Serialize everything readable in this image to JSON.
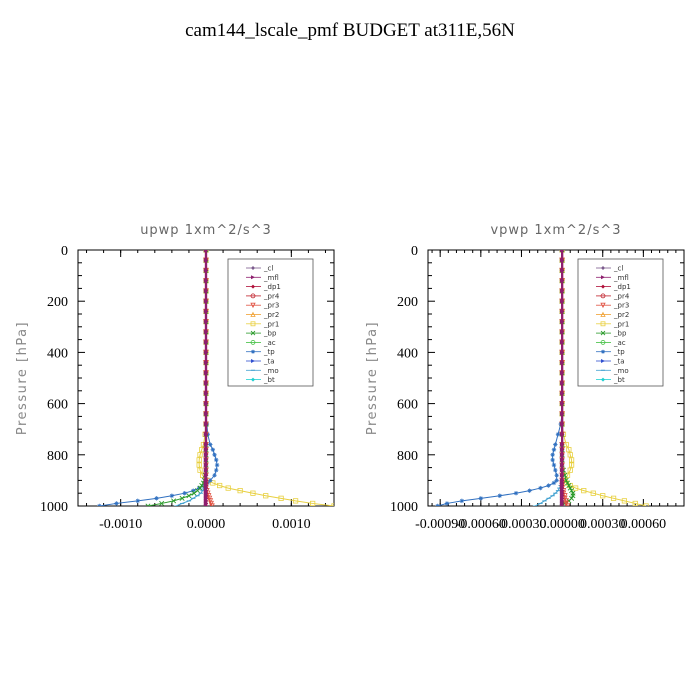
{
  "title": "cam144_lscale_pmf  BUDGET at311E,56N",
  "legend_entries": [
    {
      "name": "_cl",
      "color": "#7b5a8c",
      "marker": "diamond"
    },
    {
      "name": "_mfl",
      "color": "#8e1f6e",
      "marker": "triangle-right"
    },
    {
      "name": "_dp1",
      "color": "#b0103a",
      "marker": "diamond"
    },
    {
      "name": "_pr4",
      "color": "#c0202a",
      "marker": "circle"
    },
    {
      "name": "_pr3",
      "color": "#e05040",
      "marker": "triangle-down"
    },
    {
      "name": "_pr2",
      "color": "#f0a030",
      "marker": "triangle-up"
    },
    {
      "name": "_pr1",
      "color": "#e8d040",
      "marker": "square"
    },
    {
      "name": "_bp",
      "color": "#2a9a2a",
      "marker": "x"
    },
    {
      "name": "_ac",
      "color": "#40c040",
      "marker": "circle"
    },
    {
      "name": "_tp",
      "color": "#3070c0",
      "marker": "star"
    },
    {
      "name": "_ta",
      "color": "#3050d0",
      "marker": "triangle-right"
    },
    {
      "name": "_mo",
      "color": "#40a0d0",
      "marker": "dash"
    },
    {
      "name": "_bt",
      "color": "#20d0d0",
      "marker": "diamond"
    }
  ],
  "chart_data": [
    {
      "type": "line",
      "title": "upwp   1xm^2/s^3",
      "ylabel": "Pressure  [hPa]",
      "xlim": [
        -0.0015,
        0.0015
      ],
      "ylim": [
        1000,
        0
      ],
      "xticks": [
        -0.001,
        0.0,
        0.001
      ],
      "xtick_labels": [
        "-0.0010",
        "0.0000",
        "0.0010"
      ],
      "yticks": [
        0,
        200,
        400,
        600,
        800,
        1000
      ],
      "ytick_labels": [
        "0",
        "200",
        "400",
        "600",
        "800",
        "1000"
      ],
      "legend_placement": "top-right",
      "y": [
        0,
        40,
        80,
        120,
        160,
        200,
        240,
        280,
        320,
        360,
        400,
        440,
        480,
        520,
        560,
        600,
        640,
        680,
        720,
        760,
        780,
        800,
        820,
        840,
        860,
        880,
        900,
        910,
        920,
        930,
        940,
        950,
        960,
        970,
        980,
        990,
        1000
      ],
      "series": [
        {
          "name": "_pr1",
          "x": [
            0,
            0,
            0,
            0,
            0,
            0,
            0,
            0,
            0,
            0,
            0,
            0,
            0,
            0,
            0,
            0,
            0,
            0,
            -1e-05,
            -3e-05,
            -5e-05,
            -7e-05,
            -8e-05,
            -8e-05,
            -7e-05,
            -4e-05,
            2e-05,
            8e-05,
            0.00016,
            0.00026,
            0.0004,
            0.00055,
            0.0007,
            0.00088,
            0.00105,
            0.00125,
            0.0015
          ]
        },
        {
          "name": "_tp",
          "x": [
            0,
            0,
            0,
            0,
            0,
            0,
            0,
            0,
            0,
            0,
            0,
            0,
            0,
            0,
            0,
            0,
            0,
            1e-05,
            2e-05,
            5e-05,
            8e-05,
            0.0001,
            0.00012,
            0.00013,
            0.00012,
            0.0001,
            5e-05,
            2e-05,
            -2e-05,
            -8e-05,
            -0.00015,
            -0.00025,
            -0.0004,
            -0.00058,
            -0.0008,
            -0.00105,
            -0.00125
          ]
        },
        {
          "name": "_bp",
          "x": [
            0,
            0,
            0,
            0,
            0,
            0,
            0,
            0,
            0,
            0,
            0,
            0,
            0,
            0,
            0,
            0,
            0,
            0,
            0,
            0,
            0,
            0,
            0,
            0,
            0,
            -1e-05,
            -2e-05,
            -3e-05,
            -5e-05,
            -7e-05,
            -0.0001,
            -0.00014,
            -0.0002,
            -0.00028,
            -0.00038,
            -0.00052,
            -0.00068
          ]
        },
        {
          "name": "_mo",
          "x": [
            0,
            0,
            0,
            0,
            0,
            0,
            0,
            0,
            0,
            0,
            0,
            0,
            0,
            0,
            0,
            0,
            0,
            0,
            0,
            0,
            0,
            0,
            0,
            0,
            0,
            0,
            0,
            0,
            -1e-05,
            -2e-05,
            -4e-05,
            -6e-05,
            -0.0001,
            -0.00015,
            -0.0002,
            -0.00028,
            -0.00035
          ]
        },
        {
          "name": "_pr3",
          "x": [
            0,
            0,
            0,
            0,
            0,
            0,
            0,
            0,
            0,
            0,
            0,
            0,
            0,
            0,
            0,
            0,
            0,
            0,
            0,
            0,
            0,
            0,
            0,
            0,
            0,
            0,
            0,
            0,
            0,
            0,
            1e-05,
            2e-05,
            3e-05,
            4e-05,
            5e-05,
            6e-05,
            7e-05
          ]
        },
        {
          "name": "_dp1",
          "x": [
            0,
            0,
            0,
            0,
            0,
            0,
            0,
            0,
            0,
            0,
            0,
            0,
            0,
            0,
            0,
            0,
            0,
            0,
            0,
            0,
            0,
            0,
            0,
            0,
            0,
            0,
            0,
            0,
            0,
            0,
            0,
            0,
            0,
            0,
            0,
            0,
            0
          ]
        },
        {
          "name": "_mfl",
          "x": [
            0,
            0,
            0,
            0,
            0,
            0,
            0,
            0,
            0,
            0,
            0,
            0,
            0,
            0,
            0,
            0,
            0,
            0,
            0,
            0,
            0,
            0,
            0,
            0,
            0,
            0,
            0,
            0,
            0,
            0,
            0,
            0,
            0,
            0,
            0,
            0,
            0
          ]
        }
      ]
    },
    {
      "type": "line",
      "title": "vpwp   1xm^2/s^3",
      "ylabel": "Pressure  [hPa]",
      "xlim": [
        -0.00099,
        0.0009
      ],
      "ylim": [
        1000,
        0
      ],
      "xticks": [
        -0.0009,
        -0.0006,
        -0.0003,
        0.0,
        0.0003,
        0.0006
      ],
      "xtick_labels": [
        "-0.00090",
        "-0.00060",
        "-0.00030",
        "0.00000",
        "0.00030",
        "0.00060"
      ],
      "yticks": [
        0,
        200,
        400,
        600,
        800,
        1000
      ],
      "ytick_labels": [
        "0",
        "200",
        "400",
        "600",
        "800",
        "1000"
      ],
      "legend_placement": "top-right",
      "y": [
        0,
        40,
        80,
        120,
        160,
        200,
        240,
        280,
        320,
        360,
        400,
        440,
        480,
        520,
        560,
        600,
        640,
        680,
        720,
        760,
        780,
        800,
        820,
        840,
        860,
        880,
        900,
        910,
        920,
        930,
        940,
        950,
        960,
        970,
        980,
        990,
        1000
      ],
      "series": [
        {
          "name": "_pr1",
          "x": [
            0,
            0,
            0,
            0,
            0,
            0,
            0,
            0,
            0,
            0,
            0,
            0,
            0,
            0,
            0,
            0,
            0,
            0,
            1e-05,
            3e-05,
            5e-05,
            6e-05,
            7e-05,
            7e-05,
            6e-05,
            4e-05,
            2e-05,
            3e-05,
            6e-05,
            0.0001,
            0.00016,
            0.00023,
            0.0003,
            0.00038,
            0.00046,
            0.00054,
            0.00062
          ]
        },
        {
          "name": "_tp",
          "x": [
            0,
            0,
            0,
            0,
            0,
            0,
            0,
            0,
            0,
            0,
            0,
            0,
            0,
            0,
            0,
            0,
            0,
            -1e-05,
            -3e-05,
            -5e-05,
            -6e-05,
            -7e-05,
            -7e-05,
            -6e-05,
            -5e-05,
            -4e-05,
            -4e-05,
            -6e-05,
            -0.0001,
            -0.00016,
            -0.00024,
            -0.00034,
            -0.00046,
            -0.0006,
            -0.00074,
            -0.00085,
            -0.00092
          ]
        },
        {
          "name": "_bp",
          "x": [
            0,
            0,
            0,
            0,
            0,
            0,
            0,
            0,
            0,
            0,
            0,
            0,
            0,
            0,
            0,
            0,
            0,
            0,
            0,
            0,
            0,
            0,
            0,
            0,
            1e-05,
            2e-05,
            3e-05,
            4e-05,
            5e-05,
            6e-05,
            7e-05,
            8e-05,
            8e-05,
            7e-05,
            5e-05,
            2e-05,
            0
          ]
        },
        {
          "name": "_mo",
          "x": [
            0,
            0,
            0,
            0,
            0,
            0,
            0,
            0,
            0,
            0,
            0,
            0,
            0,
            0,
            0,
            0,
            0,
            0,
            0,
            0,
            0,
            0,
            0,
            0,
            0,
            0,
            0,
            0,
            -1e-05,
            -2e-05,
            -3e-05,
            -5e-05,
            -7e-05,
            -0.0001,
            -0.00013,
            -0.00016,
            -0.0002
          ]
        },
        {
          "name": "_pr3",
          "x": [
            0,
            0,
            0,
            0,
            0,
            0,
            0,
            0,
            0,
            0,
            0,
            0,
            0,
            0,
            0,
            0,
            0,
            0,
            0,
            0,
            0,
            0,
            0,
            0,
            0,
            0,
            0,
            0,
            0,
            0,
            1e-05,
            1e-05,
            2e-05,
            2e-05,
            3e-05,
            3e-05,
            4e-05
          ]
        },
        {
          "name": "_dp1",
          "x": [
            0,
            0,
            0,
            0,
            0,
            0,
            0,
            0,
            0,
            0,
            0,
            0,
            0,
            0,
            0,
            0,
            0,
            0,
            0,
            0,
            0,
            0,
            0,
            0,
            0,
            0,
            0,
            0,
            0,
            0,
            0,
            0,
            0,
            0,
            0,
            0,
            0
          ]
        },
        {
          "name": "_mfl",
          "x": [
            0,
            0,
            0,
            0,
            0,
            0,
            0,
            0,
            0,
            0,
            0,
            0,
            0,
            0,
            0,
            0,
            0,
            0,
            0,
            0,
            0,
            0,
            0,
            0,
            0,
            0,
            0,
            0,
            0,
            0,
            0,
            0,
            0,
            0,
            0,
            0,
            0
          ]
        }
      ]
    }
  ]
}
